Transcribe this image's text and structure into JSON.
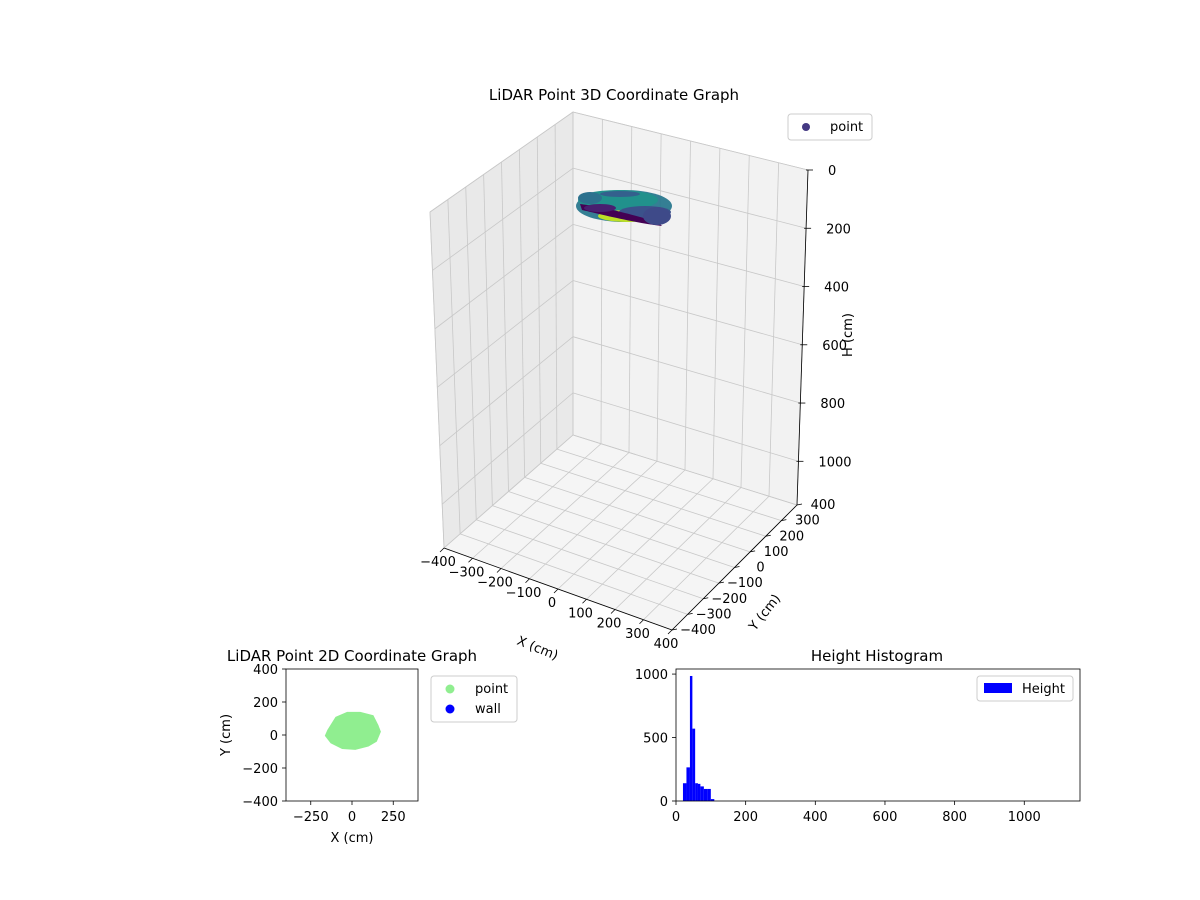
{
  "chart_data": [
    {
      "type": "scatter",
      "projection": "3d",
      "title": "LiDAR Point 3D Coordinate Graph",
      "xlabel": "X (cm)",
      "ylabel": "Y (cm)",
      "zlabel": "H (cm)",
      "xlim": [
        -400,
        400
      ],
      "ylim": [
        -400,
        400
      ],
      "zlim": [
        0,
        1150
      ],
      "z_inverted": true,
      "x_ticks": [
        "−400",
        "−300",
        "−200",
        "−100",
        "0",
        "100",
        "200",
        "300",
        "400"
      ],
      "y_ticks": [
        "−400",
        "−300",
        "−200",
        "−100",
        "0",
        "100",
        "200",
        "300",
        "400"
      ],
      "z_ticks": [
        "0",
        "200",
        "400",
        "600",
        "800",
        "1000"
      ],
      "grid": true,
      "colormap": "viridis",
      "legend": {
        "position": "top-right",
        "entries": [
          {
            "name": "point",
            "color": "#443983"
          }
        ]
      }
    },
    {
      "type": "scatter",
      "title": "LiDAR Point 2D Coordinate Graph",
      "xlabel": "X (cm)",
      "ylabel": "Y (cm)",
      "xlim": [
        -400,
        400
      ],
      "ylim": [
        -400,
        400
      ],
      "x_ticks": [
        "−250",
        "0",
        "250"
      ],
      "y_ticks": [
        "−400",
        "−200",
        "0",
        "200",
        "400"
      ],
      "series": [
        {
          "name": "point",
          "color": "#90ee90",
          "region_outline": [
            [
              -150,
              30
            ],
            [
              -100,
              110
            ],
            [
              -30,
              140
            ],
            [
              50,
              140
            ],
            [
              130,
              120
            ],
            [
              160,
              60
            ],
            [
              175,
              20
            ],
            [
              150,
              -40
            ],
            [
              100,
              -70
            ],
            [
              20,
              -90
            ],
            [
              -60,
              -85
            ],
            [
              -130,
              -50
            ],
            [
              -165,
              -5
            ]
          ]
        },
        {
          "name": "wall",
          "color": "#0000ff",
          "points": []
        }
      ],
      "legend": {
        "position": "outside-right"
      }
    },
    {
      "type": "bar",
      "subtype": "histogram",
      "title": "Height Histogram",
      "xlim": [
        0,
        1160
      ],
      "ylim": [
        0,
        1040
      ],
      "x_ticks": [
        "0",
        "200",
        "400",
        "600",
        "800",
        "1000"
      ],
      "y_ticks": [
        "0",
        "500",
        "1000"
      ],
      "series": [
        {
          "name": "Height",
          "color": "#0000ff",
          "bin_edges": [
            20,
            30,
            40,
            47,
            55,
            63,
            70,
            80,
            90,
            100,
            110,
            120
          ],
          "values": [
            140,
            265,
            985,
            570,
            140,
            135,
            115,
            95,
            95,
            15,
            0
          ]
        }
      ],
      "legend": {
        "position": "top-right"
      }
    }
  ]
}
